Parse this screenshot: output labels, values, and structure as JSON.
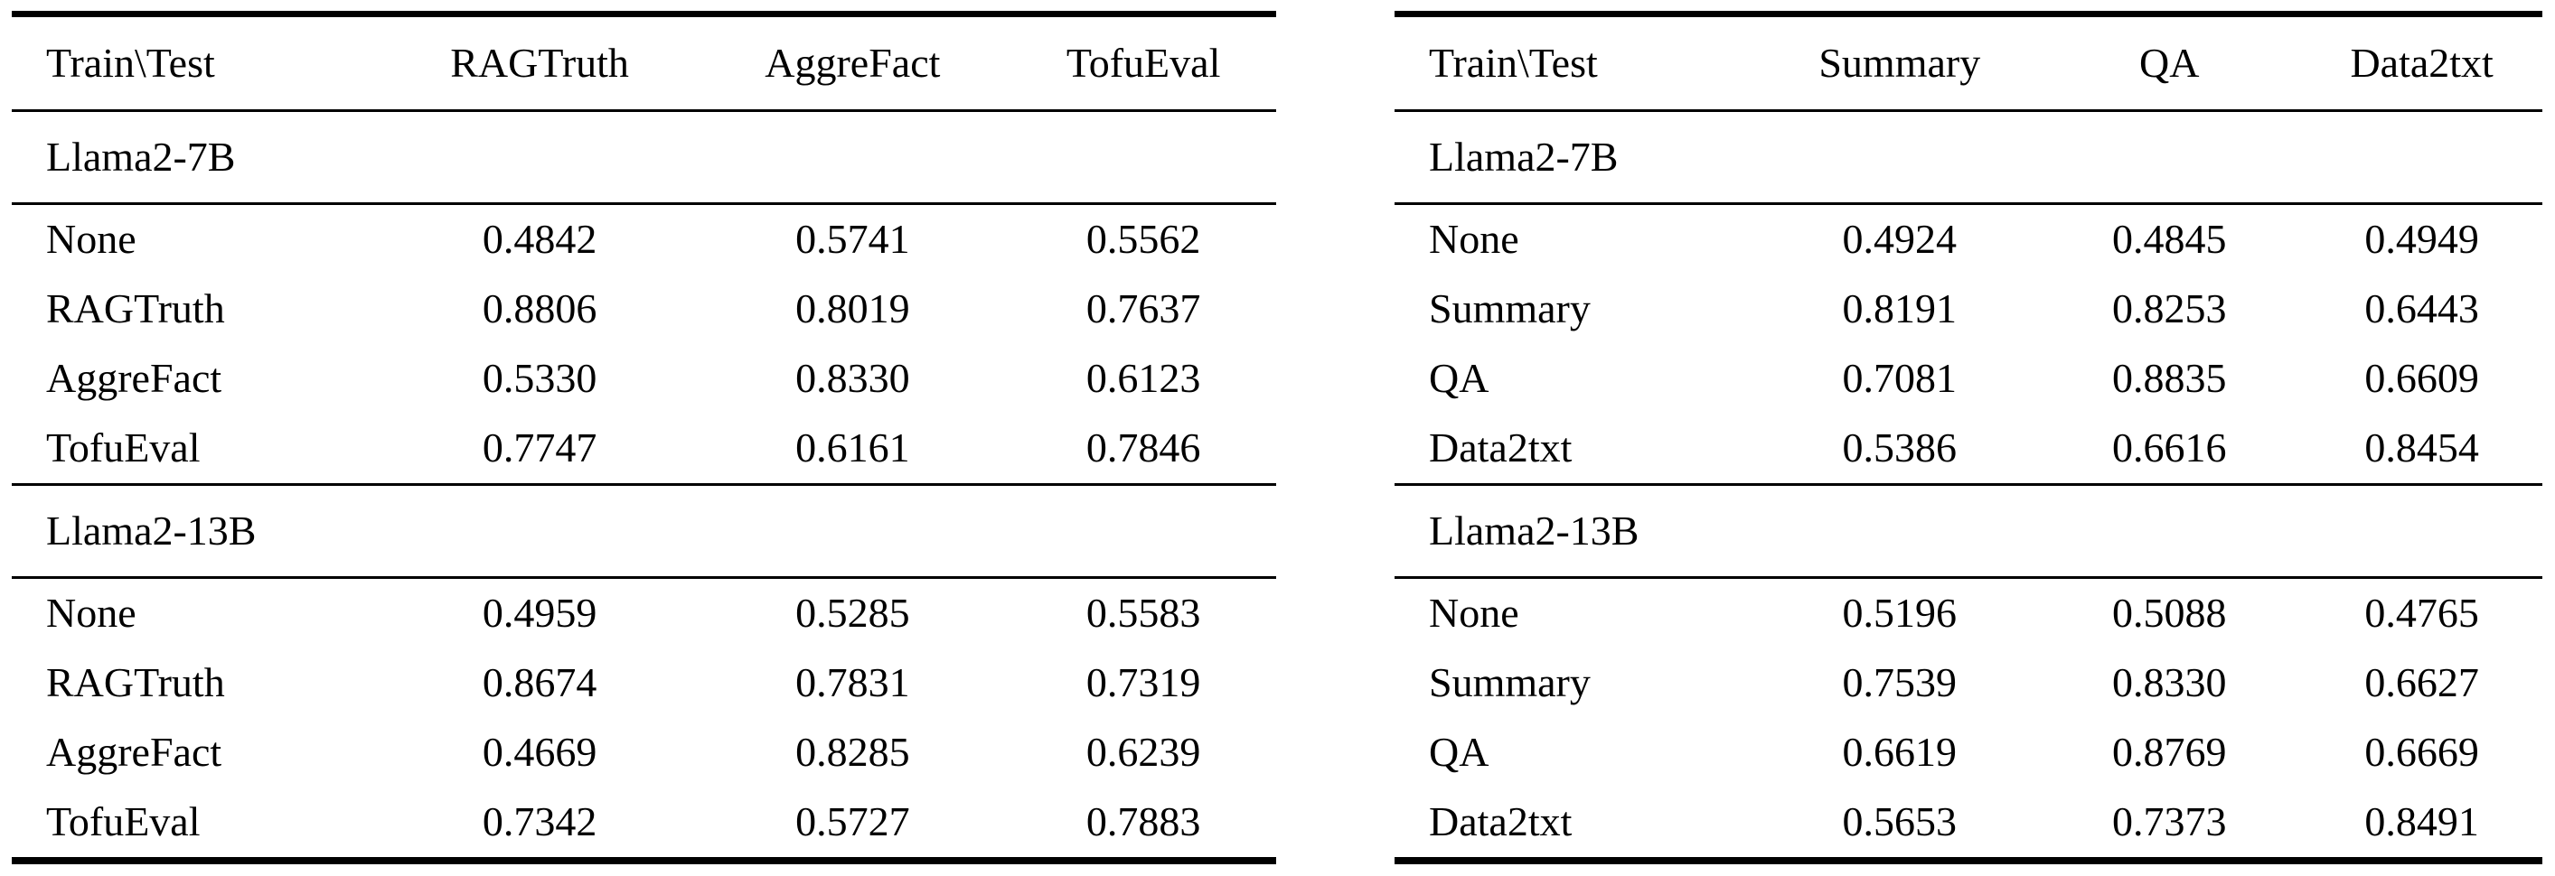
{
  "colors": {
    "background": "#ffffff",
    "text": "#000000",
    "rule": "#000000"
  },
  "tables": [
    {
      "id": "left-cross-dataset",
      "header": [
        "Train\\Test",
        "RAGTruth",
        "AggreFact",
        "TofuEval"
      ],
      "sections": [
        {
          "group_label": "Llama2-7B",
          "rows": [
            {
              "label": "None",
              "values": [
                "0.4842",
                "0.5741",
                "0.5562"
              ]
            },
            {
              "label": "RAGTruth",
              "values": [
                "0.8806",
                "0.8019",
                "0.7637"
              ]
            },
            {
              "label": "AggreFact",
              "values": [
                "0.5330",
                "0.8330",
                "0.6123"
              ]
            },
            {
              "label": "TofuEval",
              "values": [
                "0.7747",
                "0.6161",
                "0.7846"
              ]
            }
          ]
        },
        {
          "group_label": "Llama2-13B",
          "rows": [
            {
              "label": "None",
              "values": [
                "0.4959",
                "0.5285",
                "0.5583"
              ]
            },
            {
              "label": "RAGTruth",
              "values": [
                "0.8674",
                "0.7831",
                "0.7319"
              ]
            },
            {
              "label": "AggreFact",
              "values": [
                "0.4669",
                "0.8285",
                "0.6239"
              ]
            },
            {
              "label": "TofuEval",
              "values": [
                "0.7342",
                "0.5727",
                "0.7883"
              ]
            }
          ]
        }
      ]
    },
    {
      "id": "right-cross-task",
      "header": [
        "Train\\Test",
        "Summary",
        "QA",
        "Data2txt"
      ],
      "sections": [
        {
          "group_label": "Llama2-7B",
          "rows": [
            {
              "label": "None",
              "values": [
                "0.4924",
                "0.4845",
                "0.4949"
              ]
            },
            {
              "label": "Summary",
              "values": [
                "0.8191",
                "0.8253",
                "0.6443"
              ]
            },
            {
              "label": "QA",
              "values": [
                "0.7081",
                "0.8835",
                "0.6609"
              ]
            },
            {
              "label": "Data2txt",
              "values": [
                "0.5386",
                "0.6616",
                "0.8454"
              ]
            }
          ]
        },
        {
          "group_label": "Llama2-13B",
          "rows": [
            {
              "label": "None",
              "values": [
                "0.5196",
                "0.5088",
                "0.4765"
              ]
            },
            {
              "label": "Summary",
              "values": [
                "0.7539",
                "0.8330",
                "0.6627"
              ]
            },
            {
              "label": "QA",
              "values": [
                "0.6619",
                "0.8769",
                "0.6669"
              ]
            },
            {
              "label": "Data2txt",
              "values": [
                "0.5653",
                "0.7373",
                "0.8491"
              ]
            }
          ]
        }
      ]
    }
  ]
}
